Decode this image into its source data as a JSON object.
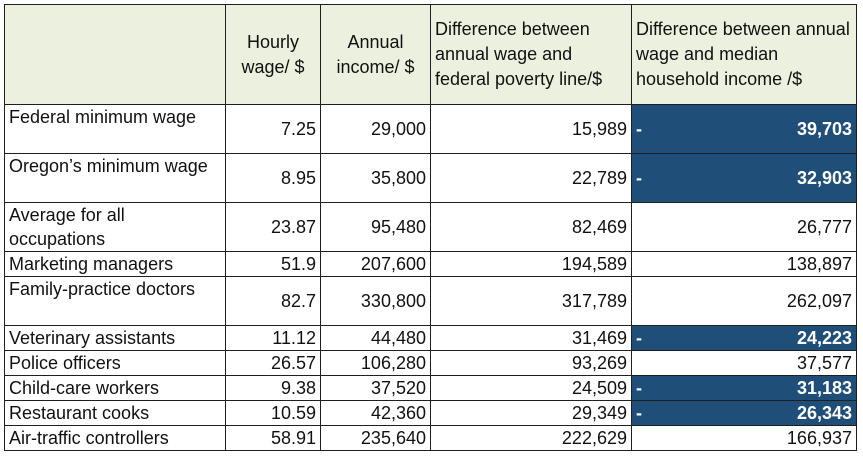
{
  "columns": [
    "",
    "Hourly wage/ $",
    "Annual income/ $",
    "Difference between annual wage and federal poverty line/$",
    "Difference between annual wage and median household income /$"
  ],
  "rows": [
    {
      "label": "Federal minimum wage",
      "hourly": "7.25",
      "annual": "29,000",
      "diff_poverty": "15,989",
      "diff_median": "39,703",
      "negative": true
    },
    {
      "label": "Oregon’s minimum wage",
      "hourly": "8.95",
      "annual": "35,800",
      "diff_poverty": "22,789",
      "diff_median": "32,903",
      "negative": true
    },
    {
      "label": "Average for all occupations",
      "hourly": "23.87",
      "annual": "95,480",
      "diff_poverty": "82,469",
      "diff_median": "26,777",
      "negative": false
    },
    {
      "label": "Marketing managers",
      "hourly": "51.9",
      "annual": "207,600",
      "diff_poverty": "194,589",
      "diff_median": "138,897",
      "negative": false
    },
    {
      "label": "Family-practice doctors",
      "hourly": "82.7",
      "annual": "330,800",
      "diff_poverty": "317,789",
      "diff_median": "262,097",
      "negative": false
    },
    {
      "label": "Veterinary assistants",
      "hourly": "11.12",
      "annual": "44,480",
      "diff_poverty": "31,469",
      "diff_median": "24,223",
      "negative": true
    },
    {
      "label": "Police officers",
      "hourly": "26.57",
      "annual": "106,280",
      "diff_poverty": "93,269",
      "diff_median": "37,577",
      "negative": false
    },
    {
      "label": "Child-care workers",
      "hourly": "9.38",
      "annual": "37,520",
      "diff_poverty": "24,509",
      "diff_median": "31,183",
      "negative": true
    },
    {
      "label": "Restaurant cooks",
      "hourly": "10.59",
      "annual": "42,360",
      "diff_poverty": "29,349",
      "diff_median": "26,343",
      "negative": true
    },
    {
      "label": "Air-traffic controllers",
      "hourly": "58.91",
      "annual": "235,640",
      "diff_poverty": "222,629",
      "diff_median": "166,937",
      "negative": false
    }
  ],
  "negative_sign": "-",
  "colors": {
    "header_bg": "#ebf1de",
    "highlight_bg": "#1f4e79",
    "highlight_text": "#ffffff"
  }
}
